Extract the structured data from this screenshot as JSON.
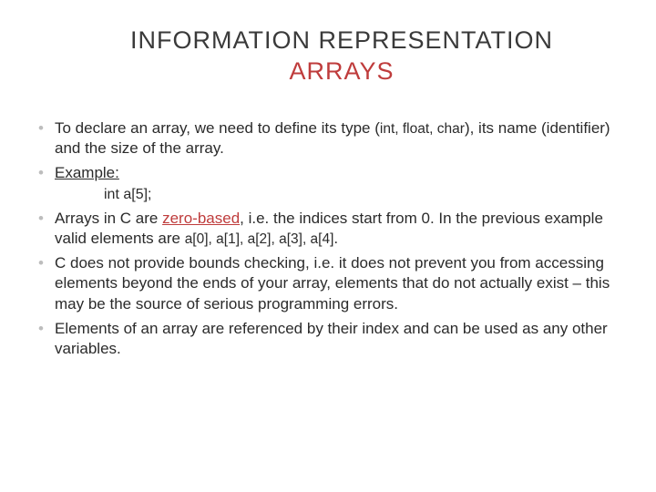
{
  "colors": {
    "accent": "#bf3c3c",
    "text": "#2b2b2b",
    "title_text": "#3a3a3a",
    "bullet": "#bdbdbd",
    "background": "#ffffff"
  },
  "typography": {
    "title_fontsize_pt": 20,
    "body_fontsize_pt": 13,
    "code_fontsize_pt": 12,
    "font_family": "Arial"
  },
  "title": {
    "line1": "INFORMATION REPRESENTATION",
    "line2": "ARRAYS"
  },
  "bullets": [
    {
      "pre": "To declare an array, we need to define its type (",
      "code1": "int, float, char",
      "post1": "), its name (identifier) and the size of the array."
    },
    {
      "underlined": "Example:"
    },
    {
      "pre": "Arrays in C are ",
      "red_underlined": "zero-based",
      "mid": ", i.e. the indices start from 0. In the previous example valid elements are ",
      "code1": "a[0], a[1], a[2], a[3], a[4]",
      "post1": "."
    },
    {
      "text": "C does not provide bounds checking, i.e. it does not prevent you from accessing elements beyond the ends of your array, elements that do not actually exist – this may be the source of serious programming errors."
    },
    {
      "text": "Elements of an array are referenced by their index and can be used as any other variables."
    }
  ],
  "code_block": "int a[5];"
}
